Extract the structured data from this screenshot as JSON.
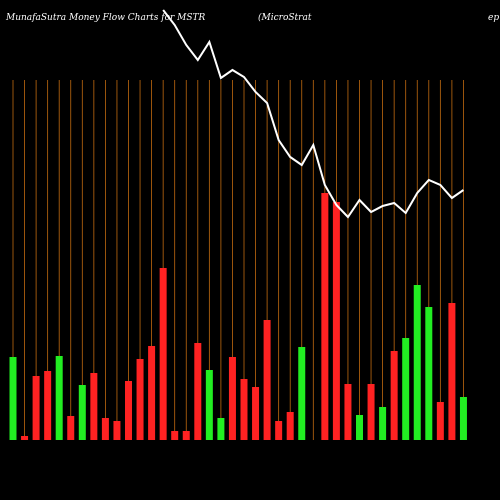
{
  "chart_data": {
    "type": "bar",
    "title": "MunafaSutra  Money Flow  Charts for MSTR",
    "subtitle": "(MicroStrat",
    "subtitle_end": "ep",
    "categories": [
      null,
      null,
      null,
      null,
      null,
      null,
      null,
      null,
      null,
      null,
      null,
      null,
      null,
      null,
      null,
      null,
      null,
      null,
      null,
      null,
      null,
      null,
      null,
      null,
      null,
      null,
      null,
      null,
      null,
      null,
      null,
      null,
      null,
      null,
      null,
      null,
      null,
      null,
      null,
      null
    ],
    "series": [
      {
        "name": "Money Flow",
        "colors": [
          "#22ee22",
          "#ff2222",
          "#ff2222",
          "#ff2222",
          "#22ee22",
          "#ff2222",
          "#22ee22",
          "#ff2222",
          "#ff2222",
          "#ff2222",
          "#ff2222",
          "#ff2222",
          "#ff2222",
          "#ff2222",
          "#ff2222",
          "#ff2222",
          "#ff2222",
          "#22ee22",
          "#22ee22",
          "#ff2222",
          "#ff2222",
          "#ff2222",
          "#ff2222",
          "#ff2222",
          "#ff2222",
          "#22ee22",
          "#ff2222",
          "#ff2222",
          "#ff2222",
          "#ff2222",
          "#22ee22",
          "#ff2222",
          "#22ee22",
          "#ff2222",
          "#22ee22",
          "#22ee22",
          "#22ee22",
          "#ff2222",
          "#ff2222",
          "#22ee22"
        ],
        "values": [
          83,
          4,
          64,
          69,
          84,
          24,
          55,
          67,
          22,
          19,
          59,
          81,
          94,
          172,
          9,
          9,
          97,
          70,
          22,
          83,
          61,
          53,
          120,
          19,
          28,
          93,
          0,
          247,
          238,
          56,
          25,
          56,
          33,
          89,
          102,
          155,
          133,
          38,
          137,
          43
        ]
      },
      {
        "name": "Price",
        "color": "#ffffff",
        "axis": "y2",
        "values": [
          null,
          null,
          null,
          null,
          null,
          null,
          null,
          null,
          null,
          null,
          null,
          null,
          null,
          490,
          475,
          455,
          440,
          458,
          422,
          430,
          423,
          408,
          397,
          360,
          343,
          335,
          355,
          315,
          295,
          283,
          300,
          288,
          294,
          297,
          287,
          307,
          320,
          315,
          302,
          310
        ]
      }
    ],
    "ylim": [
      0,
      360
    ],
    "y2lim": [
      0,
      500
    ],
    "grid": true,
    "grid_color": "#c06a10"
  }
}
